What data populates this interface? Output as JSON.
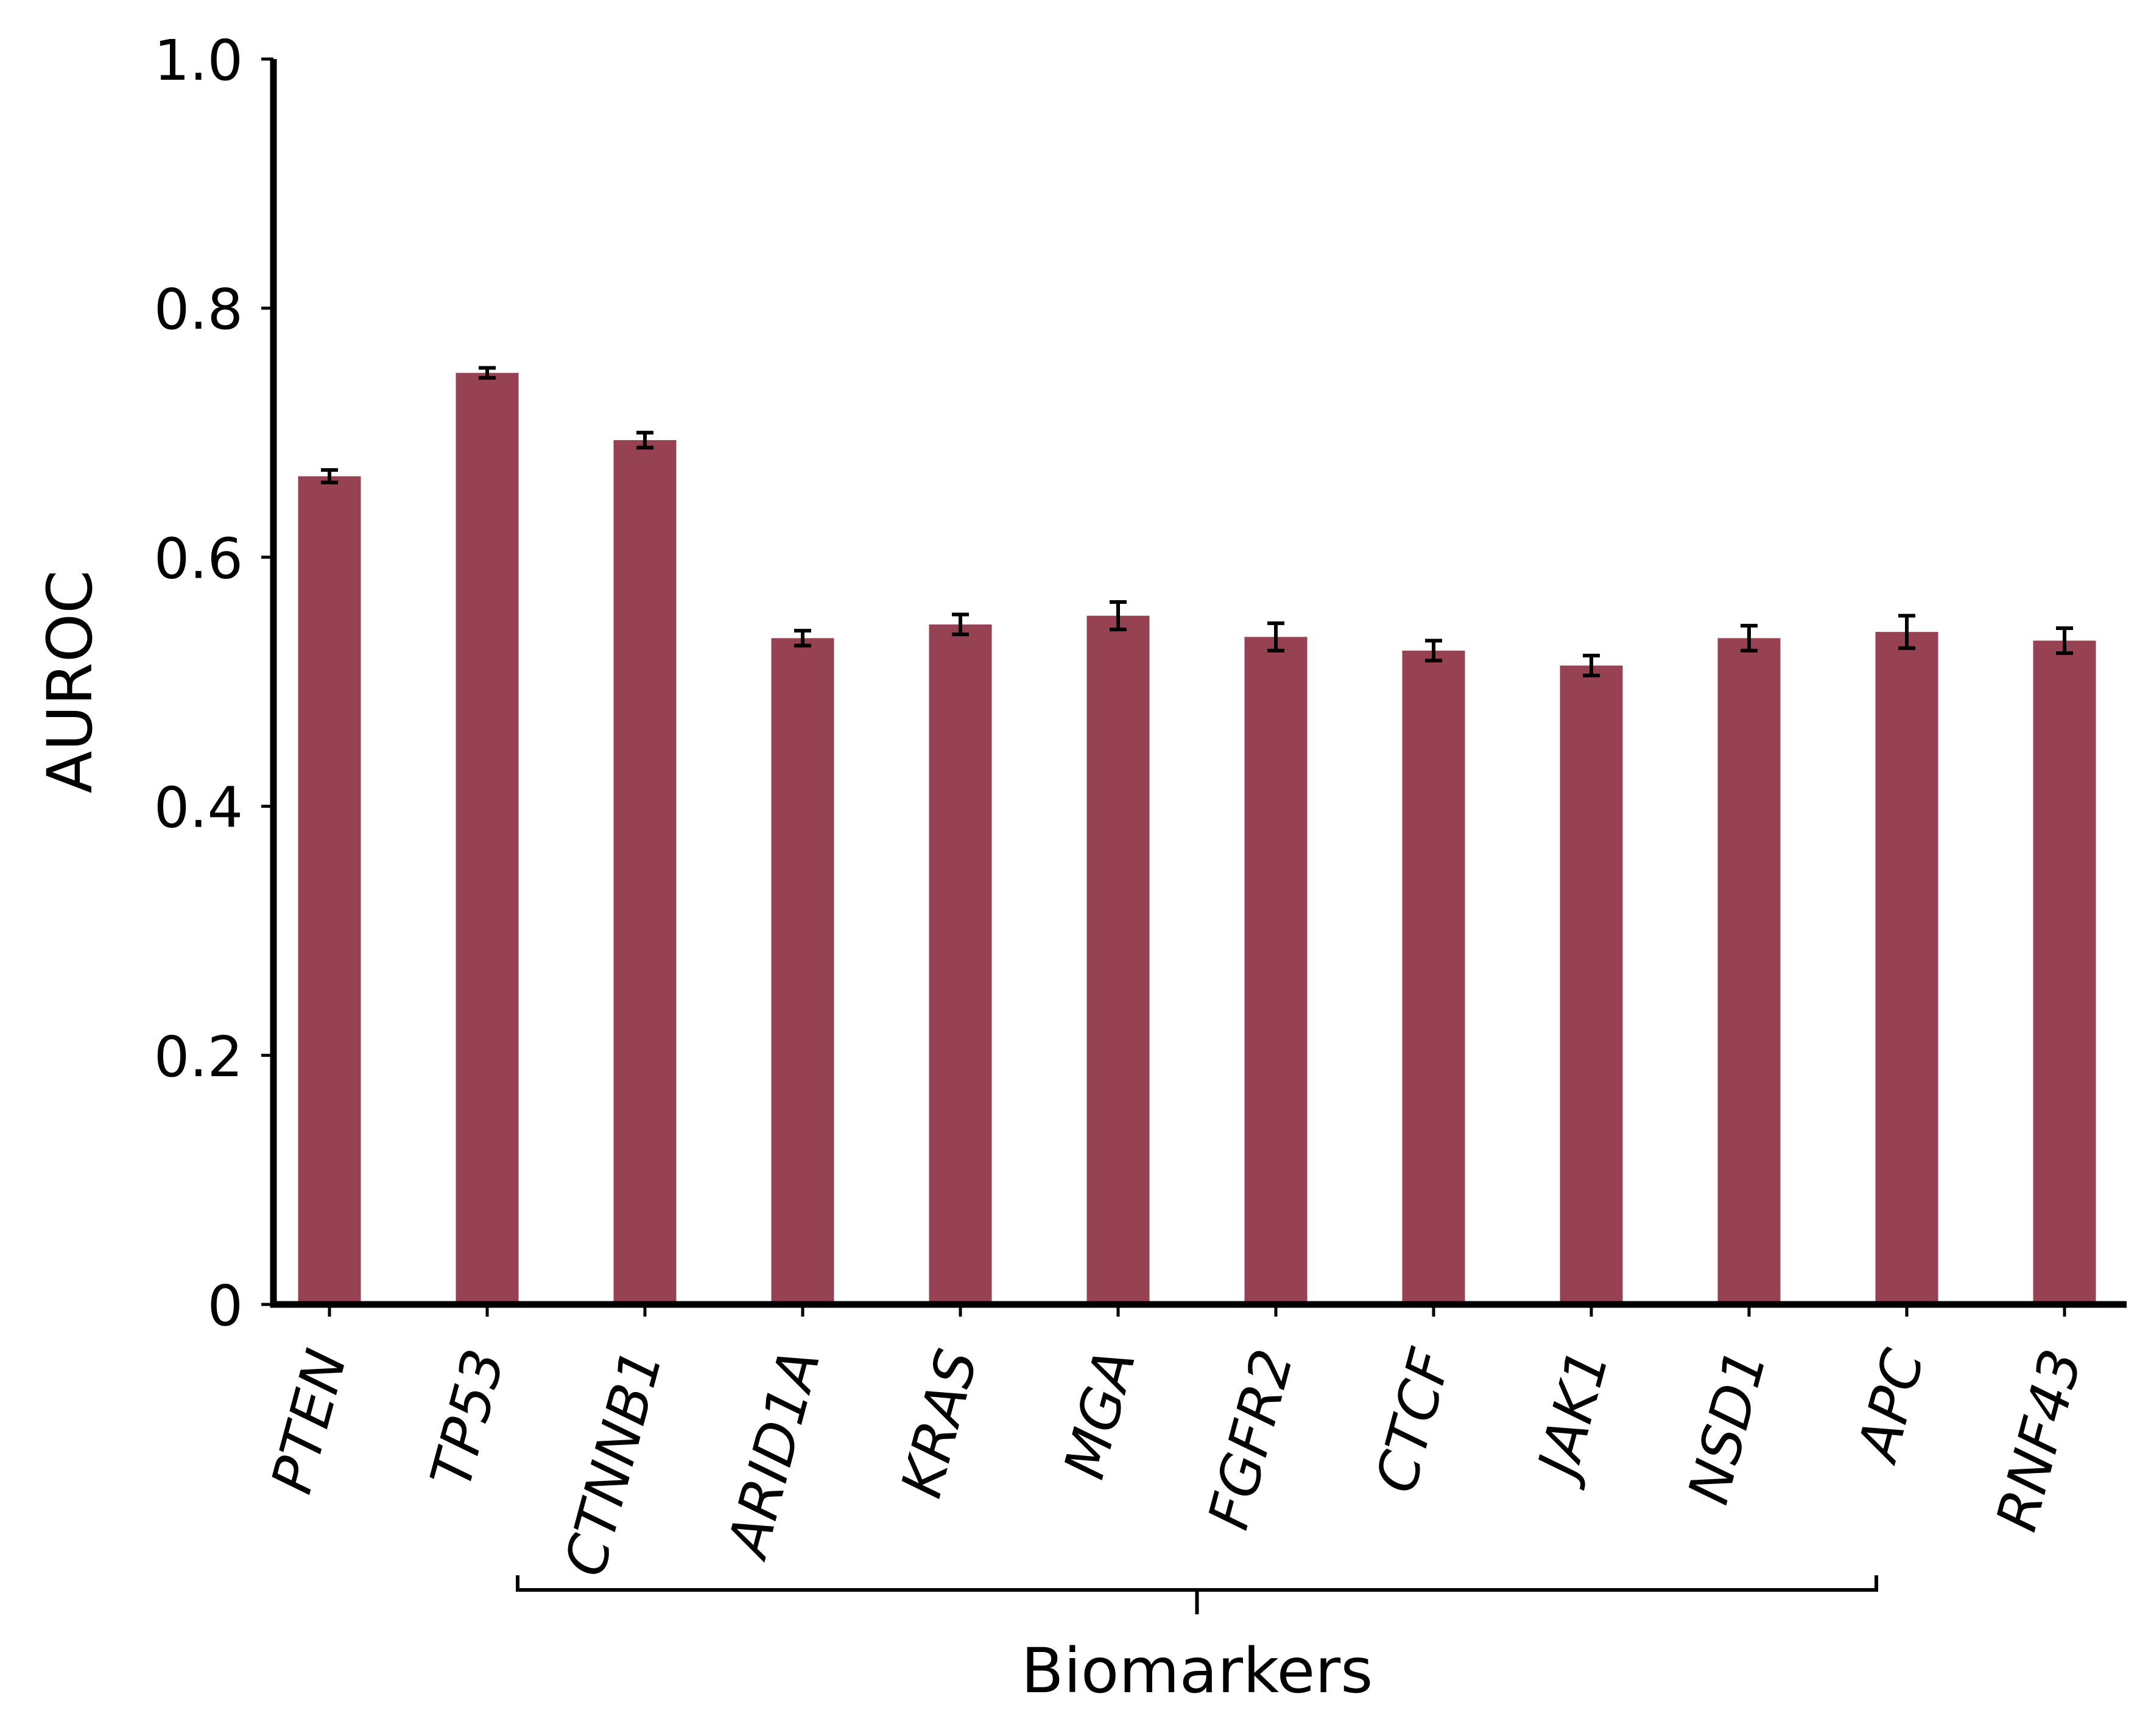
{
  "chart_data": {
    "type": "bar",
    "title": "",
    "xlabel": "Biomarkers",
    "ylabel": "AUROC",
    "ylim": [
      0,
      1.0
    ],
    "yticks": [
      0,
      0.2,
      0.4,
      0.6,
      0.8,
      1.0
    ],
    "ytick_labels": [
      "0",
      "0.2",
      "0.4",
      "0.6",
      "0.8",
      "1.0"
    ],
    "categories": [
      "PTEN",
      "TP53",
      "CTNNB1",
      "ARID1A",
      "KRAS",
      "MGA",
      "FGFR2",
      "CTCF",
      "JAK1",
      "NSD1",
      "APC",
      "RNF43"
    ],
    "values": [
      0.665,
      0.748,
      0.694,
      0.535,
      0.546,
      0.553,
      0.536,
      0.525,
      0.513,
      0.535,
      0.54,
      0.533
    ],
    "errors": [
      0.005,
      0.004,
      0.006,
      0.006,
      0.008,
      0.011,
      0.011,
      0.008,
      0.008,
      0.01,
      0.013,
      0.01
    ],
    "bracket_span": [
      "TP53",
      "APC"
    ],
    "bar_color": "#964252",
    "error_color": "#000000",
    "grid": false,
    "legend": "none"
  }
}
